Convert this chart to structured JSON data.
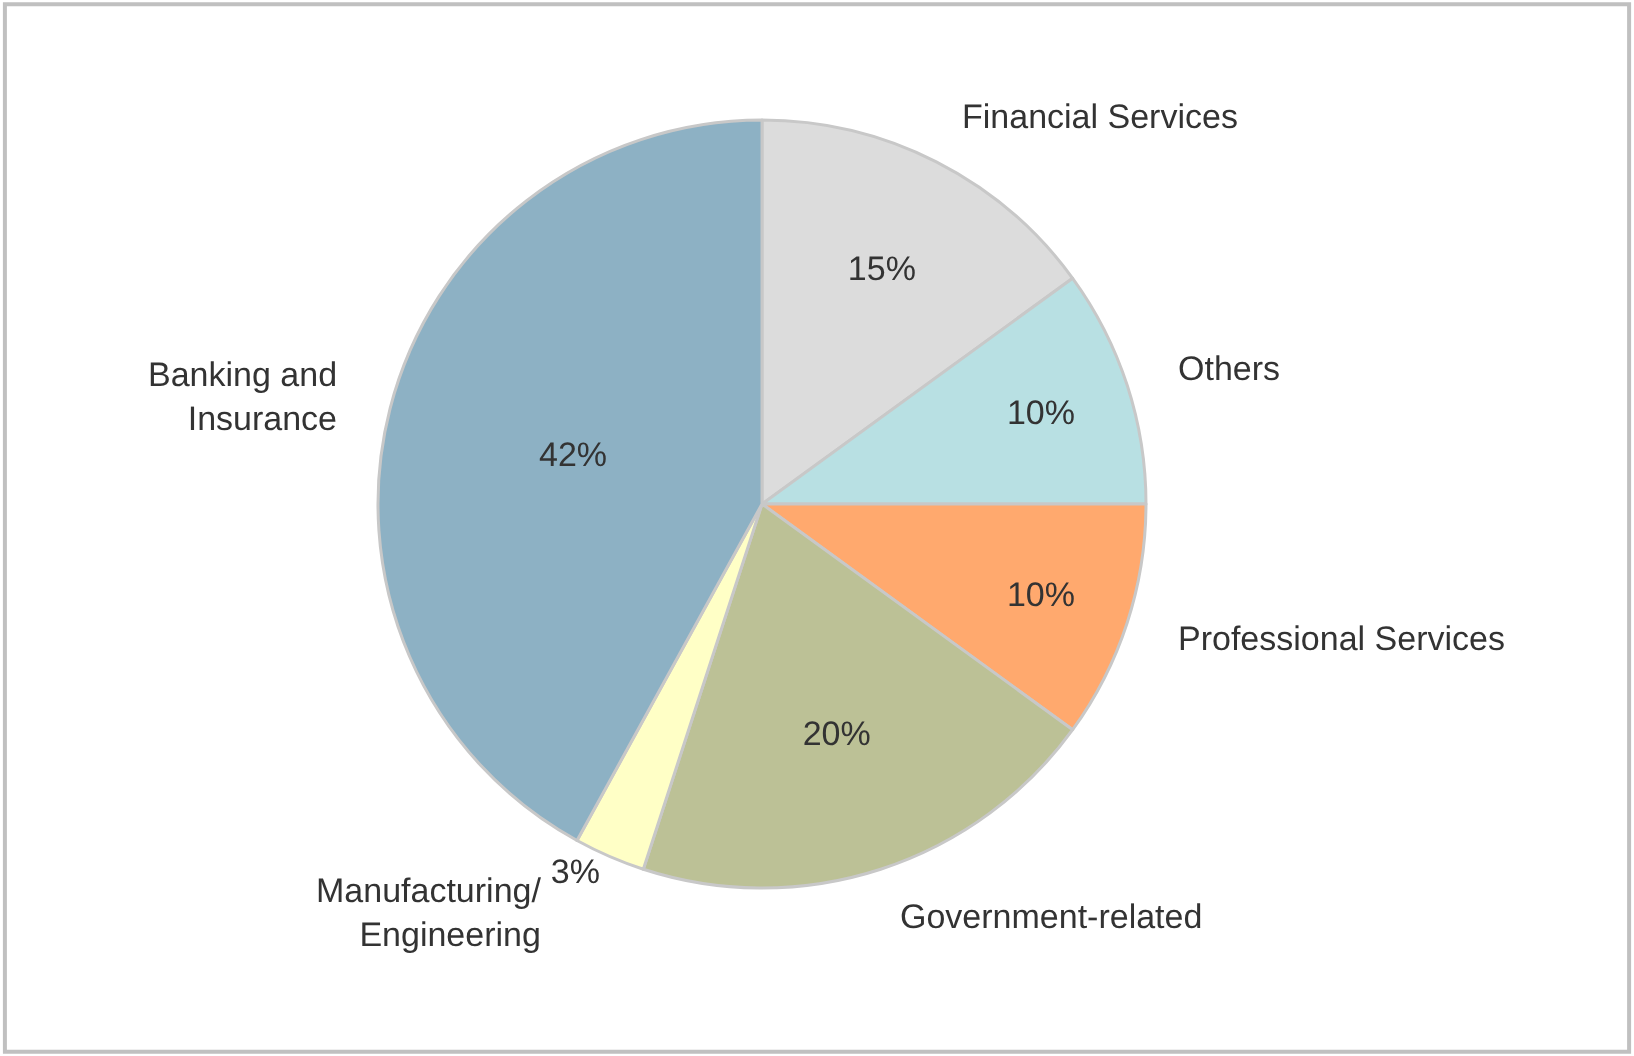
{
  "chart_data": {
    "type": "pie",
    "categories": [
      "Financial Services",
      "Others",
      "Professional Services",
      "Government-related",
      "Manufacturing/\nEngineering",
      "Banking and\nInsurance"
    ],
    "values": [
      15,
      10,
      10,
      20,
      3,
      42
    ],
    "value_labels": [
      "15%",
      "10%",
      "10%",
      "20%",
      "3%",
      "42%"
    ],
    "colors": [
      "#dcdcdc",
      "#b8e0e3",
      "#ffa96e",
      "#bcc196",
      "#ffffc6",
      "#8db1c4"
    ],
    "legend": false
  }
}
